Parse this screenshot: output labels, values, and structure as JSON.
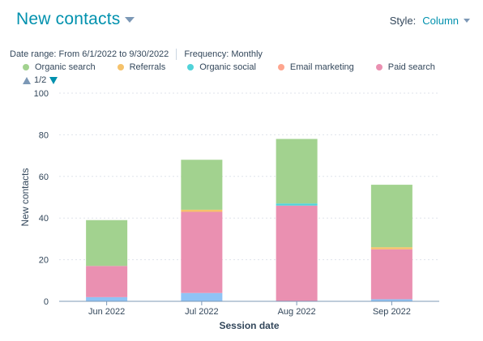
{
  "header": {
    "title": "New contacts",
    "style_label": "Style:",
    "style_value": "Column"
  },
  "meta": {
    "date_range": "Date range: From 6/1/2022 to 9/30/2022",
    "frequency": "Frequency: Monthly"
  },
  "legend": {
    "pager": "1/2"
  },
  "chart_data": {
    "type": "bar",
    "stacked": true,
    "xlabel": "Session date",
    "ylabel": "New contacts",
    "ylim": [
      0,
      100
    ],
    "yticks": [
      0,
      20,
      40,
      60,
      80,
      100
    ],
    "grid": true,
    "legend_position": "top-left",
    "categories": [
      "Jun 2022",
      "Jul 2022",
      "Aug 2022",
      "Sep 2022"
    ],
    "series": [
      {
        "name": "Paid search",
        "color": "#ea90b1",
        "values": [
          15,
          39,
          46,
          24
        ]
      },
      {
        "name": "Email marketing",
        "color": "#fea58e",
        "values": [
          0,
          0,
          0,
          0
        ]
      },
      {
        "name": "Organic social",
        "color": "#51d3d9",
        "values": [
          0,
          0,
          1,
          0
        ]
      },
      {
        "name": "Referrals",
        "color": "#f5c26b",
        "values": [
          0,
          1,
          0,
          1
        ]
      },
      {
        "name": "Organic search",
        "color": "#a2d28f",
        "values": [
          22,
          24,
          31,
          30
        ]
      }
    ],
    "unlisted_bottom_segment": {
      "color": "#8fc3f5",
      "values": [
        2,
        4,
        0,
        1
      ]
    }
  }
}
